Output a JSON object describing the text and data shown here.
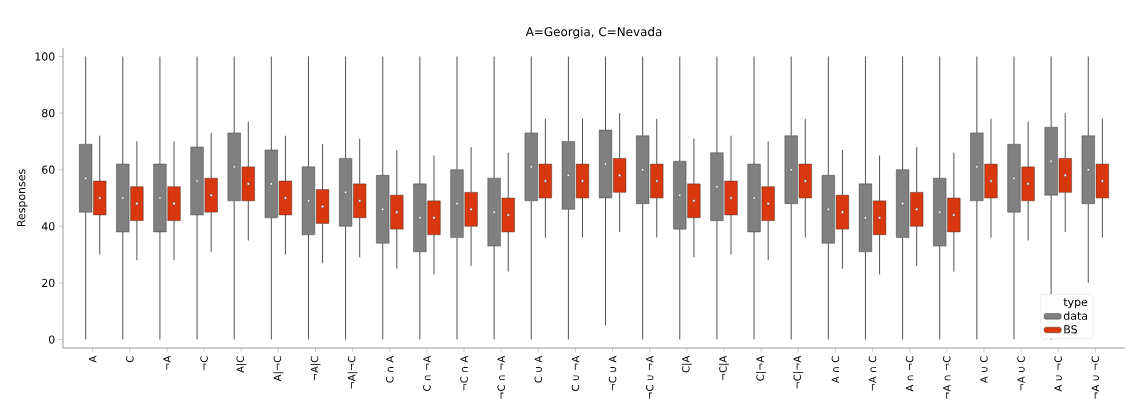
{
  "chart_data": {
    "type": "box",
    "title": "A=Georgia, C=Nevada",
    "ylabel": "Responses",
    "legend_title": "type",
    "legend": "bottom right",
    "categories": [
      "A",
      "C",
      "¬A",
      "¬C",
      "A|C",
      "A|¬C",
      "¬A|C",
      "¬A|¬C",
      "C ∩ A",
      "C ∩ ¬A",
      "¬C ∩ A",
      "¬C ∩ ¬A",
      "C ∪ A",
      "C ∪ ¬A",
      "¬C ∪ A",
      "¬C ∪ ¬A",
      "C|A",
      "¬C|A",
      "C|¬A",
      "¬C|¬A",
      "A ∩ C",
      "¬A ∩ C",
      "A ∩ ¬C",
      "¬A ∩ ¬C",
      "A ∪ C",
      "¬A ∪ C",
      "A ∪ ¬C",
      "¬A ∪ ¬C"
    ],
    "ylim": [
      -3,
      103
    ],
    "yticks": [
      0,
      20,
      40,
      60,
      80,
      100
    ],
    "series": [
      {
        "name": "data",
        "color": "#808080",
        "boxes": [
          {
            "low": 0,
            "q1": 45,
            "median": 57,
            "q3": 69,
            "high": 100
          },
          {
            "low": 0,
            "q1": 38,
            "median": 50,
            "q3": 62,
            "high": 100
          },
          {
            "low": 0,
            "q1": 38,
            "median": 50,
            "q3": 62,
            "high": 100
          },
          {
            "low": 0,
            "q1": 44,
            "median": 56,
            "q3": 68,
            "high": 100
          },
          {
            "low": 0,
            "q1": 49,
            "median": 61,
            "q3": 73,
            "high": 100
          },
          {
            "low": 0,
            "q1": 43,
            "median": 55,
            "q3": 67,
            "high": 100
          },
          {
            "low": 0,
            "q1": 37,
            "median": 49,
            "q3": 61,
            "high": 100
          },
          {
            "low": 0,
            "q1": 40,
            "median": 52,
            "q3": 64,
            "high": 100
          },
          {
            "low": 0,
            "q1": 34,
            "median": 46,
            "q3": 58,
            "high": 100
          },
          {
            "low": 0,
            "q1": 31,
            "median": 43,
            "q3": 55,
            "high": 100
          },
          {
            "low": 0,
            "q1": 36,
            "median": 48,
            "q3": 60,
            "high": 100
          },
          {
            "low": 0,
            "q1": 33,
            "median": 45,
            "q3": 57,
            "high": 100
          },
          {
            "low": 0,
            "q1": 49,
            "median": 61,
            "q3": 73,
            "high": 100
          },
          {
            "low": 0,
            "q1": 46,
            "median": 58,
            "q3": 70,
            "high": 100
          },
          {
            "low": 5,
            "q1": 50,
            "median": 62,
            "q3": 74,
            "high": 100
          },
          {
            "low": 0,
            "q1": 48,
            "median": 60,
            "q3": 72,
            "high": 100
          },
          {
            "low": 0,
            "q1": 39,
            "median": 51,
            "q3": 63,
            "high": 100
          },
          {
            "low": 0,
            "q1": 42,
            "median": 54,
            "q3": 66,
            "high": 100
          },
          {
            "low": 0,
            "q1": 38,
            "median": 50,
            "q3": 62,
            "high": 100
          },
          {
            "low": 0,
            "q1": 48,
            "median": 60,
            "q3": 72,
            "high": 100
          },
          {
            "low": 0,
            "q1": 34,
            "median": 46,
            "q3": 58,
            "high": 100
          },
          {
            "low": 0,
            "q1": 31,
            "median": 43,
            "q3": 55,
            "high": 100
          },
          {
            "low": 0,
            "q1": 36,
            "median": 48,
            "q3": 60,
            "high": 100
          },
          {
            "low": 0,
            "q1": 33,
            "median": 45,
            "q3": 57,
            "high": 100
          },
          {
            "low": 0,
            "q1": 49,
            "median": 61,
            "q3": 73,
            "high": 100
          },
          {
            "low": 0,
            "q1": 45,
            "median": 57,
            "q3": 69,
            "high": 100
          },
          {
            "low": 0,
            "q1": 51,
            "median": 63,
            "q3": 75,
            "high": 100
          },
          {
            "low": 20,
            "q1": 48,
            "median": 60,
            "q3": 72,
            "high": 100
          }
        ]
      },
      {
        "name": "BS",
        "color": "#d9380f",
        "boxes": [
          {
            "low": 30,
            "q1": 44,
            "median": 50,
            "q3": 56,
            "high": 72
          },
          {
            "low": 28,
            "q1": 42,
            "median": 48,
            "q3": 54,
            "high": 70
          },
          {
            "low": 28,
            "q1": 42,
            "median": 48,
            "q3": 54,
            "high": 70
          },
          {
            "low": 31,
            "q1": 45,
            "median": 51,
            "q3": 57,
            "high": 73
          },
          {
            "low": 35,
            "q1": 49,
            "median": 55,
            "q3": 61,
            "high": 77
          },
          {
            "low": 30,
            "q1": 44,
            "median": 50,
            "q3": 56,
            "high": 72
          },
          {
            "low": 27,
            "q1": 41,
            "median": 47,
            "q3": 53,
            "high": 69
          },
          {
            "low": 29,
            "q1": 43,
            "median": 49,
            "q3": 55,
            "high": 71
          },
          {
            "low": 25,
            "q1": 39,
            "median": 45,
            "q3": 51,
            "high": 67
          },
          {
            "low": 23,
            "q1": 37,
            "median": 43,
            "q3": 49,
            "high": 65
          },
          {
            "low": 26,
            "q1": 40,
            "median": 46,
            "q3": 52,
            "high": 68
          },
          {
            "low": 24,
            "q1": 38,
            "median": 44,
            "q3": 50,
            "high": 66
          },
          {
            "low": 36,
            "q1": 50,
            "median": 56,
            "q3": 62,
            "high": 78
          },
          {
            "low": 36,
            "q1": 50,
            "median": 56,
            "q3": 62,
            "high": 78
          },
          {
            "low": 38,
            "q1": 52,
            "median": 58,
            "q3": 64,
            "high": 80
          },
          {
            "low": 36,
            "q1": 50,
            "median": 56,
            "q3": 62,
            "high": 78
          },
          {
            "low": 29,
            "q1": 43,
            "median": 49,
            "q3": 55,
            "high": 71
          },
          {
            "low": 30,
            "q1": 44,
            "median": 50,
            "q3": 56,
            "high": 72
          },
          {
            "low": 28,
            "q1": 42,
            "median": 48,
            "q3": 54,
            "high": 70
          },
          {
            "low": 36,
            "q1": 50,
            "median": 56,
            "q3": 62,
            "high": 78
          },
          {
            "low": 25,
            "q1": 39,
            "median": 45,
            "q3": 51,
            "high": 67
          },
          {
            "low": 23,
            "q1": 37,
            "median": 43,
            "q3": 49,
            "high": 65
          },
          {
            "low": 26,
            "q1": 40,
            "median": 46,
            "q3": 52,
            "high": 68
          },
          {
            "low": 24,
            "q1": 38,
            "median": 44,
            "q3": 50,
            "high": 66
          },
          {
            "low": 36,
            "q1": 50,
            "median": 56,
            "q3": 62,
            "high": 78
          },
          {
            "low": 35,
            "q1": 49,
            "median": 55,
            "q3": 61,
            "high": 77
          },
          {
            "low": 38,
            "q1": 52,
            "median": 58,
            "q3": 64,
            "high": 80
          },
          {
            "low": 36,
            "q1": 50,
            "median": 56,
            "q3": 62,
            "high": 78
          }
        ]
      }
    ]
  }
}
